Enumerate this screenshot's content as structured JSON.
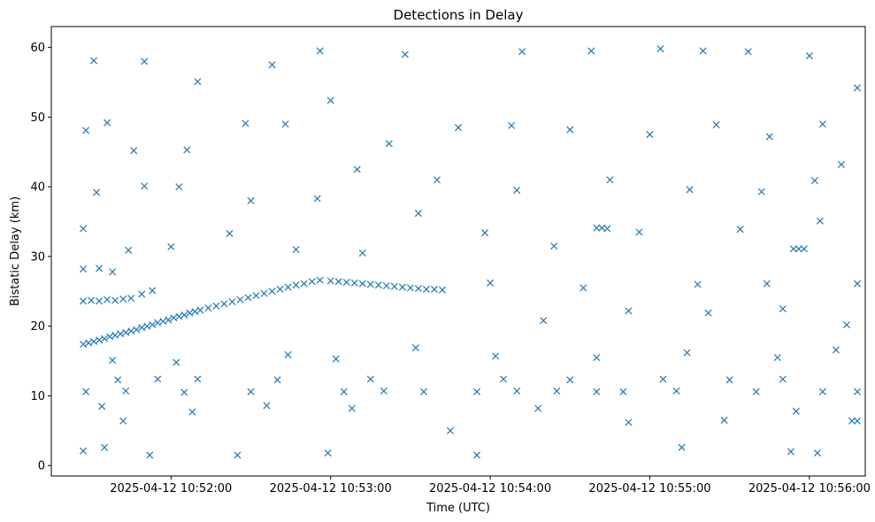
{
  "chart_data": {
    "type": "scatter",
    "title": "Detections in Delay",
    "xlabel": "Time (UTC)",
    "ylabel": "Bistatic Delay (km)",
    "x_axis_type": "time",
    "xlim": [
      "2025-04-12 10:51:15",
      "2025-04-12 10:56:21"
    ],
    "ylim": [
      -1.5,
      63
    ],
    "x_ticks": [
      "2025-04-12 10:52:00",
      "2025-04-12 10:53:00",
      "2025-04-12 10:54:00",
      "2025-04-12 10:55:00",
      "2025-04-12 10:56:00"
    ],
    "y_ticks": [
      0,
      10,
      20,
      30,
      40,
      50,
      60
    ],
    "grid": false,
    "marker": "x",
    "color": "#1f77b4",
    "series": [
      {
        "points": [
          [
            "2025-04-12 10:51:27",
            17.4
          ],
          [
            "2025-04-12 10:51:29",
            17.6
          ],
          [
            "2025-04-12 10:51:31",
            17.8
          ],
          [
            "2025-04-12 10:51:33",
            18.0
          ],
          [
            "2025-04-12 10:51:35",
            18.2
          ],
          [
            "2025-04-12 10:51:37",
            18.5
          ],
          [
            "2025-04-12 10:51:39",
            18.7
          ],
          [
            "2025-04-12 10:51:41",
            18.9
          ],
          [
            "2025-04-12 10:51:43",
            19.1
          ],
          [
            "2025-04-12 10:51:45",
            19.3
          ],
          [
            "2025-04-12 10:51:47",
            19.5
          ],
          [
            "2025-04-12 10:51:49",
            19.8
          ],
          [
            "2025-04-12 10:51:51",
            20.0
          ],
          [
            "2025-04-12 10:51:53",
            20.2
          ],
          [
            "2025-04-12 10:51:55",
            20.5
          ],
          [
            "2025-04-12 10:51:57",
            20.7
          ],
          [
            "2025-04-12 10:51:59",
            20.9
          ],
          [
            "2025-04-12 10:52:01",
            21.2
          ],
          [
            "2025-04-12 10:52:03",
            21.4
          ],
          [
            "2025-04-12 10:52:05",
            21.6
          ],
          [
            "2025-04-12 10:52:07",
            21.9
          ],
          [
            "2025-04-12 10:52:09",
            22.1
          ],
          [
            "2025-04-12 10:52:11",
            22.3
          ],
          [
            "2025-04-12 10:52:14",
            22.6
          ],
          [
            "2025-04-12 10:52:17",
            22.9
          ],
          [
            "2025-04-12 10:52:20",
            23.2
          ],
          [
            "2025-04-12 10:52:23",
            23.5
          ],
          [
            "2025-04-12 10:52:26",
            23.8
          ],
          [
            "2025-04-12 10:52:29",
            24.1
          ],
          [
            "2025-04-12 10:52:32",
            24.4
          ],
          [
            "2025-04-12 10:52:35",
            24.7
          ],
          [
            "2025-04-12 10:52:38",
            25.0
          ],
          [
            "2025-04-12 10:52:41",
            25.3
          ],
          [
            "2025-04-12 10:52:44",
            25.6
          ],
          [
            "2025-04-12 10:52:47",
            25.9
          ],
          [
            "2025-04-12 10:52:50",
            26.1
          ],
          [
            "2025-04-12 10:52:53",
            26.4
          ],
          [
            "2025-04-12 10:52:56",
            26.6
          ],
          [
            "2025-04-12 10:53:00",
            26.5
          ],
          [
            "2025-04-12 10:53:03",
            26.4
          ],
          [
            "2025-04-12 10:53:06",
            26.3
          ],
          [
            "2025-04-12 10:53:09",
            26.2
          ],
          [
            "2025-04-12 10:53:12",
            26.1
          ],
          [
            "2025-04-12 10:53:15",
            26.0
          ],
          [
            "2025-04-12 10:53:18",
            25.9
          ],
          [
            "2025-04-12 10:53:21",
            25.8
          ],
          [
            "2025-04-12 10:53:24",
            25.7
          ],
          [
            "2025-04-12 10:53:27",
            25.6
          ],
          [
            "2025-04-12 10:53:30",
            25.5
          ],
          [
            "2025-04-12 10:53:33",
            25.4
          ],
          [
            "2025-04-12 10:53:36",
            25.3
          ],
          [
            "2025-04-12 10:53:39",
            25.3
          ],
          [
            "2025-04-12 10:53:42",
            25.2
          ],
          [
            "2025-04-12 10:51:27",
            23.6
          ],
          [
            "2025-04-12 10:51:30",
            23.7
          ],
          [
            "2025-04-12 10:51:33",
            23.6
          ],
          [
            "2025-04-12 10:51:36",
            23.8
          ],
          [
            "2025-04-12 10:51:39",
            23.7
          ],
          [
            "2025-04-12 10:51:42",
            23.9
          ],
          [
            "2025-04-12 10:51:45",
            24.0
          ],
          [
            "2025-04-12 10:51:49",
            24.6
          ],
          [
            "2025-04-12 10:51:53",
            25.1
          ],
          [
            "2025-04-12 10:51:27",
            28.2
          ],
          [
            "2025-04-12 10:51:33",
            28.3
          ],
          [
            "2025-04-12 10:51:38",
            27.8
          ],
          [
            "2025-04-12 10:51:28",
            10.6
          ],
          [
            "2025-04-12 10:51:43",
            10.7
          ],
          [
            "2025-04-12 10:52:05",
            10.5
          ],
          [
            "2025-04-12 10:52:30",
            10.6
          ],
          [
            "2025-04-12 10:53:05",
            10.6
          ],
          [
            "2025-04-12 10:53:20",
            10.7
          ],
          [
            "2025-04-12 10:53:35",
            10.6
          ],
          [
            "2025-04-12 10:53:55",
            10.6
          ],
          [
            "2025-04-12 10:54:10",
            10.7
          ],
          [
            "2025-04-12 10:54:25",
            10.7
          ],
          [
            "2025-04-12 10:54:40",
            10.6
          ],
          [
            "2025-04-12 10:54:50",
            10.6
          ],
          [
            "2025-04-12 10:55:10",
            10.7
          ],
          [
            "2025-04-12 10:55:40",
            10.6
          ],
          [
            "2025-04-12 10:56:05",
            10.6
          ],
          [
            "2025-04-12 10:51:40",
            12.3
          ],
          [
            "2025-04-12 10:51:55",
            12.4
          ],
          [
            "2025-04-12 10:52:10",
            12.4
          ],
          [
            "2025-04-12 10:52:40",
            12.3
          ],
          [
            "2025-04-12 10:53:15",
            12.4
          ],
          [
            "2025-04-12 10:54:05",
            12.4
          ],
          [
            "2025-04-12 10:54:30",
            12.3
          ],
          [
            "2025-04-12 10:55:05",
            12.4
          ],
          [
            "2025-04-12 10:55:30",
            12.3
          ],
          [
            "2025-04-12 10:55:50",
            12.4
          ],
          [
            "2025-04-12 10:54:40",
            34.1
          ],
          [
            "2025-04-12 10:54:42",
            34.1
          ],
          [
            "2025-04-12 10:54:44",
            34.0
          ],
          [
            "2025-04-12 10:55:54",
            31.1
          ],
          [
            "2025-04-12 10:55:56",
            31.1
          ],
          [
            "2025-04-12 10:55:58",
            31.1
          ],
          [
            "2025-04-12 10:51:27",
            2.1
          ],
          [
            "2025-04-12 10:51:35",
            2.6
          ],
          [
            "2025-04-12 10:51:52",
            1.5
          ],
          [
            "2025-04-12 10:52:25",
            1.5
          ],
          [
            "2025-04-12 10:52:59",
            1.8
          ],
          [
            "2025-04-12 10:53:55",
            1.5
          ],
          [
            "2025-04-12 10:55:12",
            2.6
          ],
          [
            "2025-04-12 10:55:53",
            2.0
          ],
          [
            "2025-04-12 10:56:03",
            1.8
          ],
          [
            "2025-04-12 10:51:31",
            58.1
          ],
          [
            "2025-04-12 10:51:50",
            58.0
          ],
          [
            "2025-04-12 10:52:10",
            55.1
          ],
          [
            "2025-04-12 10:52:38",
            57.5
          ],
          [
            "2025-04-12 10:52:56",
            59.5
          ],
          [
            "2025-04-12 10:53:28",
            59.0
          ],
          [
            "2025-04-12 10:54:12",
            59.4
          ],
          [
            "2025-04-12 10:54:38",
            59.5
          ],
          [
            "2025-04-12 10:55:04",
            59.8
          ],
          [
            "2025-04-12 10:55:20",
            59.5
          ],
          [
            "2025-04-12 10:55:37",
            59.4
          ],
          [
            "2025-04-12 10:56:00",
            58.8
          ],
          [
            "2025-04-12 10:51:28",
            48.1
          ],
          [
            "2025-04-12 10:51:36",
            49.2
          ],
          [
            "2025-04-12 10:51:46",
            45.2
          ],
          [
            "2025-04-12 10:52:06",
            45.3
          ],
          [
            "2025-04-12 10:52:28",
            49.1
          ],
          [
            "2025-04-12 10:52:43",
            49.0
          ],
          [
            "2025-04-12 10:53:00",
            52.4
          ],
          [
            "2025-04-12 10:53:22",
            46.2
          ],
          [
            "2025-04-12 10:53:48",
            48.5
          ],
          [
            "2025-04-12 10:54:08",
            48.8
          ],
          [
            "2025-04-12 10:54:30",
            48.2
          ],
          [
            "2025-04-12 10:55:00",
            47.5
          ],
          [
            "2025-04-12 10:55:25",
            48.9
          ],
          [
            "2025-04-12 10:55:45",
            47.2
          ],
          [
            "2025-04-12 10:56:05",
            49.0
          ],
          [
            "2025-04-12 10:51:32",
            39.2
          ],
          [
            "2025-04-12 10:51:50",
            40.1
          ],
          [
            "2025-04-12 10:52:03",
            40.0
          ],
          [
            "2025-04-12 10:52:30",
            38.0
          ],
          [
            "2025-04-12 10:52:55",
            38.3
          ],
          [
            "2025-04-12 10:53:10",
            42.5
          ],
          [
            "2025-04-12 10:53:40",
            41.0
          ],
          [
            "2025-04-12 10:54:10",
            39.5
          ],
          [
            "2025-04-12 10:54:45",
            41.0
          ],
          [
            "2025-04-12 10:55:15",
            39.6
          ],
          [
            "2025-04-12 10:55:42",
            39.3
          ],
          [
            "2025-04-12 10:56:02",
            40.9
          ],
          [
            "2025-04-12 10:51:27",
            34.0
          ],
          [
            "2025-04-12 10:51:44",
            30.9
          ],
          [
            "2025-04-12 10:52:00",
            31.4
          ],
          [
            "2025-04-12 10:52:22",
            33.3
          ],
          [
            "2025-04-12 10:52:47",
            31.0
          ],
          [
            "2025-04-12 10:53:12",
            30.5
          ],
          [
            "2025-04-12 10:53:33",
            36.2
          ],
          [
            "2025-04-12 10:53:58",
            33.4
          ],
          [
            "2025-04-12 10:54:24",
            31.5
          ],
          [
            "2025-04-12 10:54:56",
            33.5
          ],
          [
            "2025-04-12 10:55:34",
            33.9
          ],
          [
            "2025-04-12 10:56:04",
            35.1
          ],
          [
            "2025-04-12 10:51:34",
            8.5
          ],
          [
            "2025-04-12 10:51:42",
            6.4
          ],
          [
            "2025-04-12 10:52:08",
            7.7
          ],
          [
            "2025-04-12 10:52:36",
            8.6
          ],
          [
            "2025-04-12 10:53:08",
            8.2
          ],
          [
            "2025-04-12 10:53:45",
            5.0
          ],
          [
            "2025-04-12 10:54:18",
            8.2
          ],
          [
            "2025-04-12 10:54:52",
            6.2
          ],
          [
            "2025-04-12 10:55:28",
            6.5
          ],
          [
            "2025-04-12 10:55:55",
            7.8
          ],
          [
            "2025-04-12 10:56:16",
            6.4
          ],
          [
            "2025-04-12 10:51:38",
            15.1
          ],
          [
            "2025-04-12 10:52:02",
            14.8
          ],
          [
            "2025-04-12 10:52:44",
            15.9
          ],
          [
            "2025-04-12 10:53:02",
            15.3
          ],
          [
            "2025-04-12 10:53:32",
            16.9
          ],
          [
            "2025-04-12 10:54:02",
            15.7
          ],
          [
            "2025-04-12 10:54:40",
            15.5
          ],
          [
            "2025-04-12 10:55:14",
            16.2
          ],
          [
            "2025-04-12 10:55:48",
            15.5
          ],
          [
            "2025-04-12 10:56:10",
            16.6
          ],
          [
            "2025-04-12 10:54:20",
            20.8
          ],
          [
            "2025-04-12 10:54:52",
            22.2
          ],
          [
            "2025-04-12 10:55:22",
            21.9
          ],
          [
            "2025-04-12 10:55:50",
            22.5
          ],
          [
            "2025-04-12 10:56:14",
            20.2
          ],
          [
            "2025-04-12 10:54:00",
            26.2
          ],
          [
            "2025-04-12 10:54:35",
            25.5
          ],
          [
            "2025-04-12 10:55:18",
            26.0
          ],
          [
            "2025-04-12 10:55:44",
            26.1
          ],
          [
            "2025-04-12 10:56:18",
            26.1
          ],
          [
            "2025-04-12 10:56:18",
            54.2
          ],
          [
            "2025-04-12 10:56:18",
            10.6
          ],
          [
            "2025-04-12 10:56:18",
            6.4
          ],
          [
            "2025-04-12 10:56:12",
            43.2
          ]
        ]
      }
    ]
  }
}
